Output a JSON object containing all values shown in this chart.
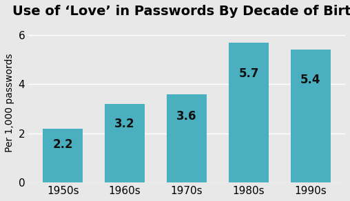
{
  "title": "Use of ‘Love’ in Passwords By Decade of Birth",
  "categories": [
    "1950s",
    "1960s",
    "1970s",
    "1980s",
    "1990s"
  ],
  "values": [
    2.2,
    3.2,
    3.6,
    5.7,
    5.4
  ],
  "bar_color": "#4AAFBF",
  "ylabel": "Per 1,000 passwords",
  "ylim": [
    0,
    6.5
  ],
  "yticks": [
    0,
    2,
    4,
    6
  ],
  "title_fontsize": 14,
  "tick_fontsize": 11,
  "ylabel_fontsize": 10,
  "bar_label_fontsize": 12,
  "bar_label_color": "#111111",
  "background_color": "#e8e8e8",
  "bar_width": 0.65
}
